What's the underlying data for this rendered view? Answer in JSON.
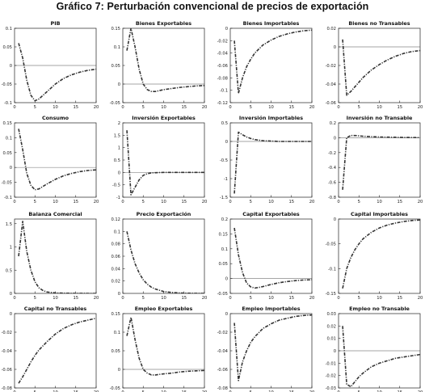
{
  "figure": {
    "title": "Gráfico 7: Perturbación convencional de precios de exportación"
  },
  "style": {
    "line_color": "#333333",
    "axis_color": "#222222",
    "zero_line_color": "#888888"
  },
  "chart_data": [
    {
      "type": "line",
      "title": "PIB",
      "xlim": [
        0,
        20
      ],
      "ylim": [
        -0.1,
        0.1
      ],
      "yticks": [
        0.1,
        0.05,
        0,
        -0.05,
        -0.1
      ],
      "yticklabels": [
        "0.1",
        "0.05",
        "0",
        "-0.05",
        "-0.1"
      ],
      "xticks": [
        0,
        5,
        10,
        15,
        20
      ],
      "xticklabels": [
        "0",
        "5",
        "10",
        "15",
        "20"
      ],
      "zero_line": true,
      "x": [
        1,
        2,
        3,
        4,
        5,
        6,
        8,
        10,
        12,
        14,
        16,
        18,
        20
      ],
      "y": [
        0.06,
        0.02,
        -0.04,
        -0.08,
        -0.095,
        -0.09,
        -0.07,
        -0.05,
        -0.035,
        -0.025,
        -0.018,
        -0.013,
        -0.01
      ]
    },
    {
      "type": "line",
      "title": "Bienes Exportables",
      "xlim": [
        0,
        20
      ],
      "ylim": [
        -0.05,
        0.15
      ],
      "yticks": [
        0.15,
        0.1,
        0.05,
        0,
        -0.05
      ],
      "yticklabels": [
        "0.15",
        "0.1",
        "0.05",
        "0",
        "-0.05"
      ],
      "xticks": [
        0,
        5,
        10,
        15,
        20
      ],
      "xticklabels": [
        "0",
        "5",
        "10",
        "15",
        "20"
      ],
      "zero_line": true,
      "x": [
        1,
        2,
        3,
        4,
        5,
        6,
        7,
        8,
        10,
        12,
        14,
        16,
        18,
        20
      ],
      "y": [
        0.09,
        0.15,
        0.1,
        0.04,
        0.0,
        -0.015,
        -0.02,
        -0.02,
        -0.015,
        -0.012,
        -0.009,
        -0.007,
        -0.005,
        -0.004
      ]
    },
    {
      "type": "line",
      "title": "Bienes Importables",
      "xlim": [
        0,
        20
      ],
      "ylim": [
        -0.12,
        0
      ],
      "yticks": [
        0,
        -0.02,
        -0.04,
        -0.06,
        -0.08,
        -0.1,
        -0.12
      ],
      "yticklabels": [
        "0",
        "-0.02",
        "-0.04",
        "-0.06",
        "-0.08",
        "-0.1",
        "-0.12"
      ],
      "xticks": [
        0,
        5,
        10,
        15,
        20
      ],
      "xticklabels": [
        "0",
        "5",
        "10",
        "15",
        "20"
      ],
      "zero_line": false,
      "x": [
        1,
        2,
        3,
        4,
        5,
        6,
        8,
        10,
        12,
        14,
        16,
        18,
        20
      ],
      "y": [
        -0.02,
        -0.105,
        -0.08,
        -0.062,
        -0.05,
        -0.04,
        -0.027,
        -0.019,
        -0.013,
        -0.009,
        -0.006,
        -0.004,
        -0.003
      ]
    },
    {
      "type": "line",
      "title": "Bienes no Transables",
      "xlim": [
        0,
        20
      ],
      "ylim": [
        -0.06,
        0.02
      ],
      "yticks": [
        0.02,
        0,
        -0.02,
        -0.04,
        -0.06
      ],
      "yticklabels": [
        "0.02",
        "0",
        "-0.02",
        "-0.04",
        "-0.06"
      ],
      "xticks": [
        0,
        5,
        10,
        15,
        20
      ],
      "xticklabels": [
        "0",
        "5",
        "10",
        "15",
        "20"
      ],
      "zero_line": true,
      "x": [
        1,
        2,
        3,
        4,
        5,
        6,
        8,
        10,
        12,
        14,
        16,
        18,
        20
      ],
      "y": [
        0.008,
        -0.052,
        -0.048,
        -0.043,
        -0.038,
        -0.033,
        -0.025,
        -0.019,
        -0.014,
        -0.01,
        -0.007,
        -0.005,
        -0.004
      ]
    },
    {
      "type": "line",
      "title": "Consumo",
      "xlim": [
        0,
        20
      ],
      "ylim": [
        -0.1,
        0.15
      ],
      "yticks": [
        0.15,
        0.1,
        0.05,
        0,
        -0.05,
        -0.1
      ],
      "yticklabels": [
        "0.15",
        "0.1",
        "0.05",
        "0",
        "-0.05",
        "-0.1"
      ],
      "xticks": [
        0,
        5,
        10,
        15,
        20
      ],
      "xticklabels": [
        "0",
        "5",
        "10",
        "15",
        "20"
      ],
      "zero_line": true,
      "x": [
        1,
        2,
        3,
        4,
        5,
        6,
        8,
        10,
        12,
        14,
        16,
        18,
        20
      ],
      "y": [
        0.13,
        0.06,
        -0.02,
        -0.06,
        -0.075,
        -0.072,
        -0.055,
        -0.04,
        -0.028,
        -0.02,
        -0.014,
        -0.01,
        -0.008
      ]
    },
    {
      "type": "line",
      "title": "Inversión Exportables",
      "xlim": [
        0,
        20
      ],
      "ylim": [
        -1,
        2
      ],
      "yticks": [
        2,
        1.5,
        1,
        0.5,
        0,
        -0.5,
        -1
      ],
      "yticklabels": [
        "2",
        "1.5",
        "1",
        "0.5",
        "0",
        "-0.5",
        "-1"
      ],
      "xticks": [
        0,
        5,
        10,
        15,
        20
      ],
      "xticklabels": [
        "0",
        "5",
        "10",
        "15",
        "20"
      ],
      "zero_line": true,
      "x": [
        1,
        2,
        3,
        4,
        5,
        6,
        7,
        8,
        10,
        12,
        14,
        16,
        18,
        20
      ],
      "y": [
        1.7,
        -0.9,
        -0.6,
        -0.3,
        -0.12,
        -0.05,
        -0.02,
        -0.01,
        0,
        0,
        0,
        0,
        0,
        0
      ]
    },
    {
      "type": "line",
      "title": "Inversión Importables",
      "xlim": [
        0,
        20
      ],
      "ylim": [
        -1.5,
        0.5
      ],
      "yticks": [
        0.5,
        0,
        -0.5,
        -1,
        -1.5
      ],
      "yticklabels": [
        "0.5",
        "0",
        "-0.5",
        "-1",
        "-1.5"
      ],
      "xticks": [
        0,
        5,
        10,
        15,
        20
      ],
      "xticklabels": [
        "0",
        "5",
        "10",
        "15",
        "20"
      ],
      "zero_line": true,
      "x": [
        1,
        2,
        3,
        4,
        5,
        6,
        8,
        10,
        12,
        14,
        16,
        18,
        20
      ],
      "y": [
        -1.4,
        0.25,
        0.18,
        0.12,
        0.08,
        0.05,
        0.02,
        0.01,
        0,
        0,
        0,
        0,
        0
      ]
    },
    {
      "type": "line",
      "title": "Inversión no Transable",
      "xlim": [
        0,
        20
      ],
      "ylim": [
        -0.8,
        0.2
      ],
      "yticks": [
        0.2,
        0,
        -0.2,
        -0.4,
        -0.6,
        -0.8
      ],
      "yticklabels": [
        "0.2",
        "0",
        "-0.2",
        "-0.4",
        "-0.6",
        "-0.8"
      ],
      "xticks": [
        0,
        5,
        10,
        15,
        20
      ],
      "xticklabels": [
        "0",
        "5",
        "10",
        "15",
        "20"
      ],
      "zero_line": true,
      "x": [
        1,
        2,
        3,
        4,
        5,
        6,
        8,
        10,
        12,
        14,
        16,
        18,
        20
      ],
      "y": [
        -0.7,
        0.0,
        0.03,
        0.03,
        0.025,
        0.02,
        0.015,
        0.01,
        0.008,
        0.006,
        0.004,
        0.003,
        0.002
      ]
    },
    {
      "type": "line",
      "title": "Balanza Comercial",
      "xlim": [
        0,
        20
      ],
      "ylim": [
        0,
        1.6
      ],
      "yticks": [
        1.5,
        1,
        0.5,
        0
      ],
      "yticklabels": [
        "1.5",
        "1",
        "0.5",
        "0"
      ],
      "xticks": [
        0,
        5,
        10,
        15,
        20
      ],
      "xticklabels": [
        "0",
        "5",
        "10",
        "15",
        "20"
      ],
      "zero_line": false,
      "x": [
        1,
        2,
        3,
        4,
        5,
        6,
        7,
        8,
        10,
        12,
        14,
        16,
        18,
        20
      ],
      "y": [
        0.8,
        1.55,
        0.9,
        0.5,
        0.25,
        0.12,
        0.06,
        0.03,
        0.01,
        0.005,
        0.002,
        0.001,
        0,
        0
      ]
    },
    {
      "type": "line",
      "title": "Precio Exportación",
      "xlim": [
        0,
        20
      ],
      "ylim": [
        0,
        0.12
      ],
      "yticks": [
        0.12,
        0.1,
        0.08,
        0.06,
        0.04,
        0.02,
        0
      ],
      "yticklabels": [
        "0.12",
        "0.1",
        "0.08",
        "0.06",
        "0.04",
        "0.02",
        "0"
      ],
      "xticks": [
        0,
        5,
        10,
        15,
        20
      ],
      "xticklabels": [
        "0",
        "5",
        "10",
        "15",
        "20"
      ],
      "zero_line": false,
      "x": [
        1,
        2,
        3,
        4,
        5,
        6,
        7,
        8,
        10,
        12,
        14,
        16,
        18,
        20
      ],
      "y": [
        0.1,
        0.07,
        0.048,
        0.033,
        0.022,
        0.015,
        0.01,
        0.007,
        0.003,
        0.0015,
        0.0007,
        0.0003,
        0.0001,
        0
      ]
    },
    {
      "type": "line",
      "title": "Capital Exportables",
      "xlim": [
        0,
        20
      ],
      "ylim": [
        -0.05,
        0.2
      ],
      "yticks": [
        0.2,
        0.15,
        0.1,
        0.05,
        0,
        -0.05
      ],
      "yticklabels": [
        "0.2",
        "0.15",
        "0.1",
        "0.05",
        "0",
        "-0.05"
      ],
      "xticks": [
        0,
        5,
        10,
        15,
        20
      ],
      "xticklabels": [
        "0",
        "5",
        "10",
        "15",
        "20"
      ],
      "zero_line": true,
      "x": [
        1,
        2,
        3,
        4,
        5,
        6,
        7,
        8,
        10,
        12,
        14,
        16,
        18,
        20
      ],
      "y": [
        0.17,
        0.08,
        0.02,
        -0.015,
        -0.028,
        -0.032,
        -0.03,
        -0.027,
        -0.02,
        -0.014,
        -0.01,
        -0.007,
        -0.005,
        -0.004
      ]
    },
    {
      "type": "line",
      "title": "Capital Importables",
      "xlim": [
        0,
        20
      ],
      "ylim": [
        -0.15,
        0
      ],
      "yticks": [
        0,
        -0.05,
        -0.1,
        -0.15
      ],
      "yticklabels": [
        "0",
        "-0.05",
        "-0.1",
        "-0.15"
      ],
      "xticks": [
        0,
        5,
        10,
        15,
        20
      ],
      "xticklabels": [
        "0",
        "5",
        "10",
        "15",
        "20"
      ],
      "zero_line": false,
      "x": [
        1,
        2,
        3,
        4,
        5,
        6,
        8,
        10,
        12,
        14,
        16,
        18,
        20
      ],
      "y": [
        -0.14,
        -0.1,
        -0.078,
        -0.062,
        -0.05,
        -0.04,
        -0.027,
        -0.018,
        -0.012,
        -0.008,
        -0.005,
        -0.003,
        -0.002
      ]
    },
    {
      "type": "line",
      "title": "Capital no Transables",
      "xlim": [
        0,
        20
      ],
      "ylim": [
        -0.08,
        0
      ],
      "yticks": [
        0,
        -0.02,
        -0.04,
        -0.06,
        -0.08
      ],
      "yticklabels": [
        "0",
        "-0.02",
        "-0.04",
        "-0.06",
        "-0.08"
      ],
      "xticks": [
        0,
        5,
        10,
        15,
        20
      ],
      "xticklabels": [
        "0",
        "5",
        "10",
        "15",
        "20"
      ],
      "zero_line": false,
      "x": [
        1,
        2,
        3,
        4,
        5,
        6,
        8,
        10,
        12,
        14,
        16,
        18,
        20
      ],
      "y": [
        -0.075,
        -0.068,
        -0.06,
        -0.052,
        -0.045,
        -0.039,
        -0.03,
        -0.022,
        -0.016,
        -0.012,
        -0.009,
        -0.007,
        -0.005
      ]
    },
    {
      "type": "line",
      "title": "Empleo Exportables",
      "xlim": [
        0,
        20
      ],
      "ylim": [
        -0.05,
        0.15
      ],
      "yticks": [
        0.15,
        0.1,
        0.05,
        0,
        -0.05
      ],
      "yticklabels": [
        "0.15",
        "0.1",
        "0.05",
        "0",
        "-0.05"
      ],
      "xticks": [
        0,
        5,
        10,
        15,
        20
      ],
      "xticklabels": [
        "0",
        "5",
        "10",
        "15",
        "20"
      ],
      "zero_line": true,
      "x": [
        1,
        2,
        3,
        4,
        5,
        6,
        7,
        8,
        10,
        12,
        14,
        16,
        18,
        20
      ],
      "y": [
        0.09,
        0.14,
        0.08,
        0.03,
        0.0,
        -0.01,
        -0.015,
        -0.015,
        -0.012,
        -0.01,
        -0.007,
        -0.005,
        -0.004,
        -0.003
      ]
    },
    {
      "type": "line",
      "title": "Empleo Importables",
      "xlim": [
        0,
        20
      ],
      "ylim": [
        -0.08,
        0
      ],
      "yticks": [
        0,
        -0.02,
        -0.04,
        -0.06,
        -0.08
      ],
      "yticklabels": [
        "0",
        "-0.02",
        "-0.04",
        "-0.06",
        "-0.08"
      ],
      "xticks": [
        0,
        5,
        10,
        15,
        20
      ],
      "xticklabels": [
        "0",
        "5",
        "10",
        "15",
        "20"
      ],
      "zero_line": false,
      "x": [
        1,
        2,
        3,
        4,
        5,
        6,
        8,
        10,
        12,
        14,
        16,
        18,
        20
      ],
      "y": [
        -0.01,
        -0.072,
        -0.052,
        -0.04,
        -0.031,
        -0.025,
        -0.016,
        -0.011,
        -0.007,
        -0.005,
        -0.003,
        -0.002,
        -0.0015
      ]
    },
    {
      "type": "line",
      "title": "Empleo no Transable",
      "xlim": [
        0,
        20
      ],
      "ylim": [
        -0.03,
        0.03
      ],
      "yticks": [
        0.03,
        0.02,
        0.01,
        0,
        -0.01,
        -0.02,
        -0.03
      ],
      "yticklabels": [
        "0.03",
        "0.02",
        "0.01",
        "0",
        "-0.01",
        "-0.02",
        "-0.03"
      ],
      "xticks": [
        0,
        5,
        10,
        15,
        20
      ],
      "xticklabels": [
        "0",
        "5",
        "10",
        "15",
        "20"
      ],
      "zero_line": true,
      "x": [
        1,
        2,
        3,
        4,
        5,
        6,
        8,
        10,
        12,
        14,
        16,
        18,
        20
      ],
      "y": [
        0.02,
        -0.027,
        -0.029,
        -0.025,
        -0.021,
        -0.018,
        -0.013,
        -0.01,
        -0.008,
        -0.006,
        -0.005,
        -0.004,
        -0.003
      ]
    }
  ]
}
